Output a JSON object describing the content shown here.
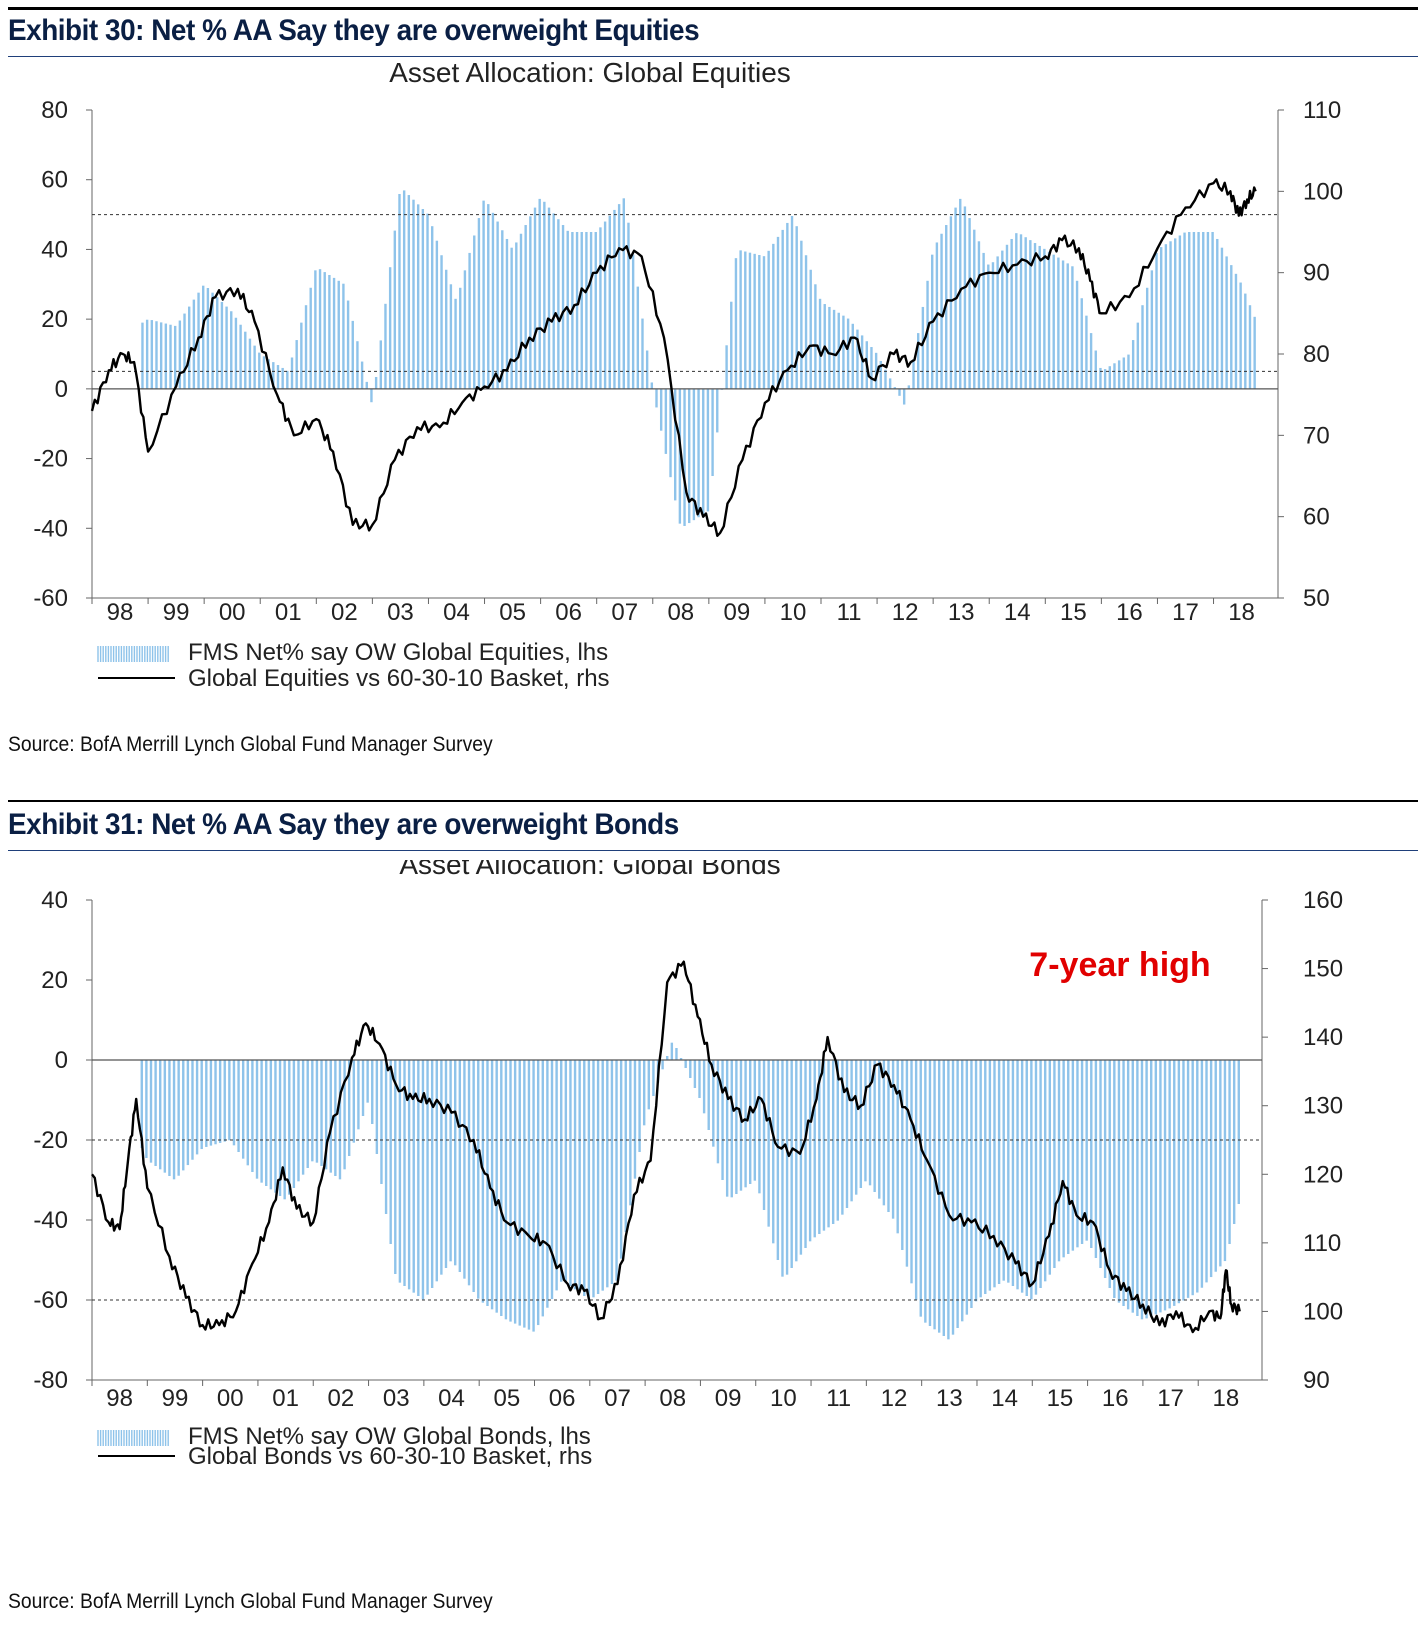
{
  "exhibits": [
    {
      "title": "Exhibit 30: Net % AA Say they are overweight Equities",
      "source": "Source:  BofA Merrill Lynch Global Fund Manager Survey"
    },
    {
      "title": "Exhibit 31: Net % AA Say they are overweight Bonds",
      "source": "Source:  BofA Merrill Lynch Global Fund Manager Survey"
    }
  ],
  "chart_data": [
    {
      "type": "bar",
      "title": "Asset Allocation: Global Equities",
      "x_tick_labels": [
        "98",
        "99",
        "00",
        "01",
        "02",
        "03",
        "04",
        "05",
        "06",
        "07",
        "08",
        "09",
        "10",
        "11",
        "12",
        "13",
        "14",
        "15",
        "16",
        "17",
        "18"
      ],
      "x_range": [
        1998.0,
        2018.9
      ],
      "y_left": {
        "min": -60,
        "max": 80,
        "ticks": [
          -60,
          -40,
          -20,
          0,
          20,
          40,
          60,
          80
        ]
      },
      "y_right": {
        "min": 50,
        "max": 110,
        "ticks": [
          50,
          60,
          70,
          80,
          90,
          100,
          110
        ]
      },
      "reference_lines_lhs": [
        50,
        5
      ],
      "zero_line_lhs": 0,
      "legend": [
        "FMS Net% say OW Global Equities, lhs",
        "Global Equities vs 60-30-10 Basket, rhs"
      ],
      "legend_position": "bottom-left",
      "colors": {
        "bars": "#8ec3ea",
        "line": "#000000"
      },
      "series": [
        {
          "name": "FMS Net% say OW Global Equities, lhs",
          "type": "bar",
          "axis": "left",
          "x": [
            1998.5,
            1999.0,
            1999.5,
            2000.0,
            2000.5,
            2001.0,
            2001.5,
            2002.0,
            2002.5,
            2003.0,
            2003.5,
            2004.0,
            2004.5,
            2005.0,
            2005.5,
            2006.0,
            2006.5,
            2007.0,
            2007.5,
            2008.0,
            2008.5,
            2009.0,
            2009.5,
            2010.0,
            2010.5,
            2011.0,
            2011.5,
            2012.0,
            2012.5,
            2013.0,
            2013.5,
            2014.0,
            2014.5,
            2015.0,
            2015.5,
            2016.0,
            2016.5,
            2017.0,
            2017.5,
            2018.0,
            2018.5,
            2018.75
          ],
          "values": [
            15,
            20,
            18,
            30,
            22,
            10,
            5,
            35,
            30,
            -5,
            58,
            50,
            25,
            55,
            40,
            55,
            45,
            45,
            55,
            0,
            -40,
            -35,
            40,
            38,
            50,
            25,
            20,
            10,
            -5,
            40,
            55,
            35,
            45,
            40,
            35,
            5,
            10,
            40,
            45,
            45,
            30,
            20
          ]
        },
        {
          "name": "Global Equities vs 60-30-10 Basket, rhs",
          "type": "line",
          "axis": "right",
          "x": [
            1998.0,
            1998.3,
            1998.55,
            1998.75,
            1999.0,
            1999.5,
            1999.9,
            2000.2,
            2000.6,
            2000.9,
            2001.3,
            2001.6,
            2002.0,
            2002.3,
            2002.65,
            2003.0,
            2003.4,
            2003.8,
            2004.2,
            2004.6,
            2005.0,
            2005.4,
            2005.8,
            2006.2,
            2006.6,
            2007.0,
            2007.4,
            2007.8,
            2008.2,
            2008.6,
            2008.9,
            2009.2,
            2009.6,
            2010.0,
            2010.4,
            2010.8,
            2011.2,
            2011.6,
            2011.9,
            2012.3,
            2012.6,
            2013.0,
            2013.5,
            2014.0,
            2014.5,
            2015.0,
            2015.3,
            2015.6,
            2015.8,
            2016.0,
            2016.5,
            2017.0,
            2017.5,
            2018.0,
            2018.3,
            2018.45,
            2018.6,
            2018.75
          ],
          "values": [
            73,
            78,
            80,
            79,
            68,
            76,
            82,
            87,
            88,
            84,
            75,
            70,
            72,
            68,
            59,
            59,
            67,
            71,
            71,
            74,
            76,
            78,
            82,
            84,
            86,
            90,
            93,
            92,
            82,
            63,
            60,
            58,
            67,
            74,
            78,
            81,
            80,
            82,
            77,
            80,
            79,
            84,
            88,
            90,
            91,
            92,
            94,
            93,
            89,
            85,
            87,
            93,
            98,
            101,
            100,
            97,
            99,
            100
          ]
        }
      ]
    },
    {
      "type": "bar",
      "title": "Asset Allocation: Global Bonds",
      "x_tick_labels": [
        "98",
        "99",
        "00",
        "01",
        "02",
        "03",
        "04",
        "05",
        "06",
        "07",
        "08",
        "09",
        "10",
        "11",
        "12",
        "13",
        "14",
        "15",
        "16",
        "17",
        "18"
      ],
      "x_range": [
        1998.0,
        2018.9
      ],
      "y_left": {
        "min": -80,
        "max": 40,
        "ticks": [
          -80,
          -60,
          -40,
          -20,
          0,
          20,
          40
        ]
      },
      "y_right": {
        "min": 90,
        "max": 160,
        "ticks": [
          90,
          100,
          110,
          120,
          130,
          140,
          150,
          160
        ]
      },
      "reference_lines_lhs": [
        -20,
        -60
      ],
      "zero_line_lhs": 0,
      "annotations": [
        "7-year high"
      ],
      "legend": [
        "FMS Net% say OW Global Bonds, lhs",
        "Global Bonds vs 60-30-10 Basket, rhs"
      ],
      "legend_position": "bottom-left",
      "colors": {
        "bars": "#8ec3ea",
        "line": "#000000",
        "annotation": "#e10000"
      },
      "series": [
        {
          "name": "FMS Net% say OW Global Bonds, lhs",
          "type": "bar",
          "axis": "left",
          "x": [
            1998.5,
            1999.0,
            1999.5,
            2000.0,
            2000.5,
            2001.0,
            2001.5,
            2002.0,
            2002.5,
            2003.0,
            2003.5,
            2004.0,
            2004.5,
            2005.0,
            2005.5,
            2006.0,
            2006.5,
            2007.0,
            2007.5,
            2008.0,
            2008.5,
            2009.0,
            2009.5,
            2010.0,
            2010.5,
            2011.0,
            2011.5,
            2012.0,
            2012.5,
            2013.0,
            2013.5,
            2014.0,
            2014.5,
            2015.0,
            2015.5,
            2016.0,
            2016.5,
            2017.0,
            2017.5,
            2018.0,
            2018.5,
            2018.75
          ],
          "values": [
            -10,
            -25,
            -30,
            -22,
            -20,
            -30,
            -35,
            -25,
            -30,
            -10,
            -55,
            -60,
            -50,
            -60,
            -65,
            -68,
            -55,
            -60,
            -55,
            -15,
            5,
            -10,
            -35,
            -30,
            -55,
            -45,
            -40,
            -30,
            -40,
            -65,
            -70,
            -60,
            -55,
            -60,
            -50,
            -45,
            -60,
            -65,
            -62,
            -58,
            -50,
            -35
          ]
        },
        {
          "name": "Global Bonds vs 60-30-10 Basket, rhs",
          "type": "line",
          "axis": "right",
          "x": [
            1998.0,
            1998.3,
            1998.5,
            1998.65,
            1998.8,
            1999.0,
            1999.4,
            1999.7,
            2000.0,
            2000.3,
            2000.6,
            2000.9,
            2001.2,
            2001.45,
            2001.7,
            2002.0,
            2002.3,
            2002.7,
            2002.95,
            2003.2,
            2003.5,
            2003.8,
            2004.1,
            2004.5,
            2004.9,
            2005.2,
            2005.5,
            2005.9,
            2006.2,
            2006.6,
            2006.9,
            2007.2,
            2007.5,
            2007.8,
            2008.1,
            2008.4,
            2008.7,
            2008.95,
            2009.2,
            2009.5,
            2009.8,
            2010.1,
            2010.4,
            2010.8,
            2011.1,
            2011.3,
            2011.6,
            2011.9,
            2012.2,
            2012.5,
            2012.8,
            2013.1,
            2013.5,
            2013.9,
            2014.3,
            2014.7,
            2015.0,
            2015.3,
            2015.55,
            2015.8,
            2016.1,
            2016.4,
            2016.7,
            2017.0,
            2017.3,
            2017.6,
            2017.9,
            2018.2,
            2018.4,
            2018.5,
            2018.6,
            2018.75
          ],
          "values": [
            120,
            113,
            112,
            122,
            131,
            118,
            108,
            102,
            98,
            98,
            100,
            107,
            113,
            121,
            115,
            113,
            126,
            137,
            142,
            139,
            133,
            131,
            131,
            129,
            125,
            118,
            113,
            111,
            110,
            104,
            103,
            99,
            104,
            117,
            122,
            148,
            151,
            143,
            136,
            131,
            128,
            131,
            124,
            123,
            131,
            140,
            132,
            130,
            136,
            133,
            128,
            122,
            114,
            113,
            111,
            107,
            104,
            111,
            119,
            114,
            113,
            106,
            103,
            101,
            98,
            100,
            97,
            100,
            99,
            106,
            101,
            100
          ]
        }
      ]
    }
  ]
}
